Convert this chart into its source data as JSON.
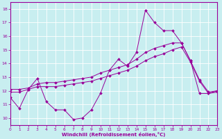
{
  "background_color": "#c8eef0",
  "line_color": "#990099",
  "grid_color": "#ffffff",
  "xlabel": "Windchill (Refroidissement éolien,°C)",
  "xlabel_color": "#990099",
  "tick_color": "#990099",
  "xmin": 0,
  "xmax": 23,
  "ymin": 9.5,
  "ymax": 18.5,
  "yticks": [
    10,
    11,
    12,
    13,
    14,
    15,
    16,
    17,
    18
  ],
  "xticks": [
    0,
    1,
    2,
    3,
    4,
    5,
    6,
    7,
    8,
    9,
    10,
    11,
    12,
    13,
    14,
    15,
    16,
    17,
    18,
    19,
    20,
    21,
    22,
    23
  ],
  "series": [
    {
      "x": [
        0,
        1,
        2,
        3,
        4,
        5,
        6,
        7,
        8,
        9,
        10,
        11,
        12,
        13,
        14,
        15,
        16,
        17,
        18,
        19,
        20,
        21,
        22,
        23
      ],
      "y": [
        11.5,
        10.7,
        12.1,
        12.9,
        11.2,
        10.6,
        10.6,
        9.9,
        10.0,
        10.6,
        11.8,
        13.5,
        14.3,
        13.8,
        14.8,
        17.9,
        17.0,
        16.4,
        16.4,
        15.5,
        14.2,
        11.8,
        11.8,
        12.0
      ]
    },
    {
      "x": [
        0,
        1,
        2,
        3,
        4,
        5,
        6,
        7,
        8,
        9,
        10,
        11,
        12,
        13,
        14,
        15,
        16,
        17,
        18,
        19,
        20,
        21,
        22,
        23
      ],
      "y": [
        12.1,
        12.1,
        12.2,
        12.5,
        12.6,
        12.6,
        12.7,
        12.8,
        12.9,
        13.0,
        13.3,
        13.5,
        13.7,
        13.9,
        14.3,
        14.8,
        15.1,
        15.3,
        15.5,
        15.5,
        14.2,
        12.8,
        11.9,
        12.0
      ]
    },
    {
      "x": [
        0,
        1,
        2,
        3,
        4,
        5,
        6,
        7,
        8,
        9,
        10,
        11,
        12,
        13,
        14,
        15,
        16,
        17,
        18,
        19,
        20,
        21,
        22,
        23
      ],
      "y": [
        11.9,
        11.9,
        12.1,
        12.3,
        12.3,
        12.3,
        12.4,
        12.5,
        12.6,
        12.7,
        12.9,
        13.1,
        13.3,
        13.5,
        13.8,
        14.2,
        14.5,
        14.7,
        15.0,
        15.2,
        14.1,
        12.7,
        11.8,
        11.9
      ]
    }
  ]
}
